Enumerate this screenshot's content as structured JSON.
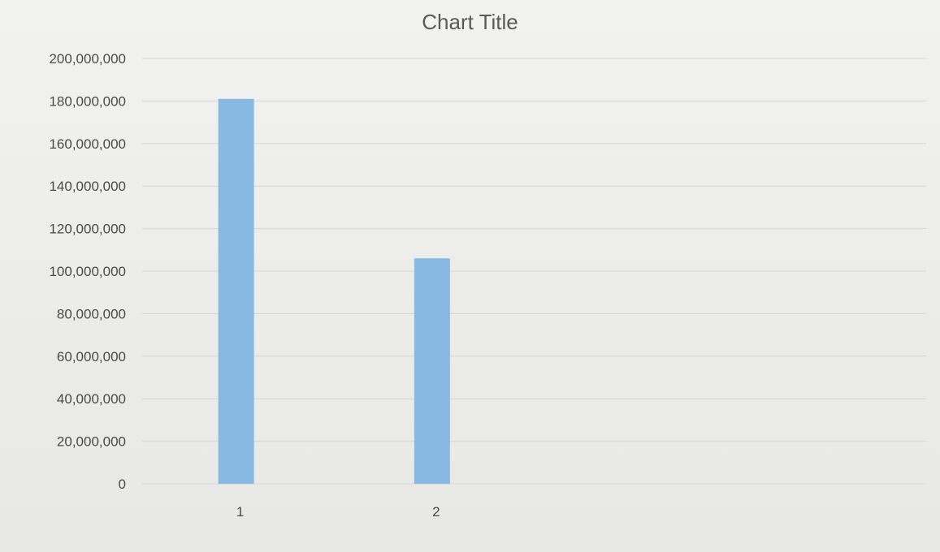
{
  "chart_data": {
    "type": "bar",
    "title": "Chart Title",
    "categories": [
      "1",
      "2"
    ],
    "values": [
      181000000,
      106000000
    ],
    "ylim": [
      0,
      200000000
    ],
    "yticks": [
      "0",
      "20,000,000",
      "40,000,000",
      "60,000,000",
      "80,000,000",
      "100,000,000",
      "120,000,000",
      "140,000,000",
      "160,000,000",
      "180,000,000",
      "200,000,000"
    ],
    "ytick_values": [
      0,
      20000000,
      40000000,
      60000000,
      80000000,
      100000000,
      120000000,
      140000000,
      160000000,
      180000000,
      200000000
    ],
    "grid": true,
    "legend": "none",
    "bar_color": "#88b9e2",
    "grid_color": "#d6d6d4"
  }
}
